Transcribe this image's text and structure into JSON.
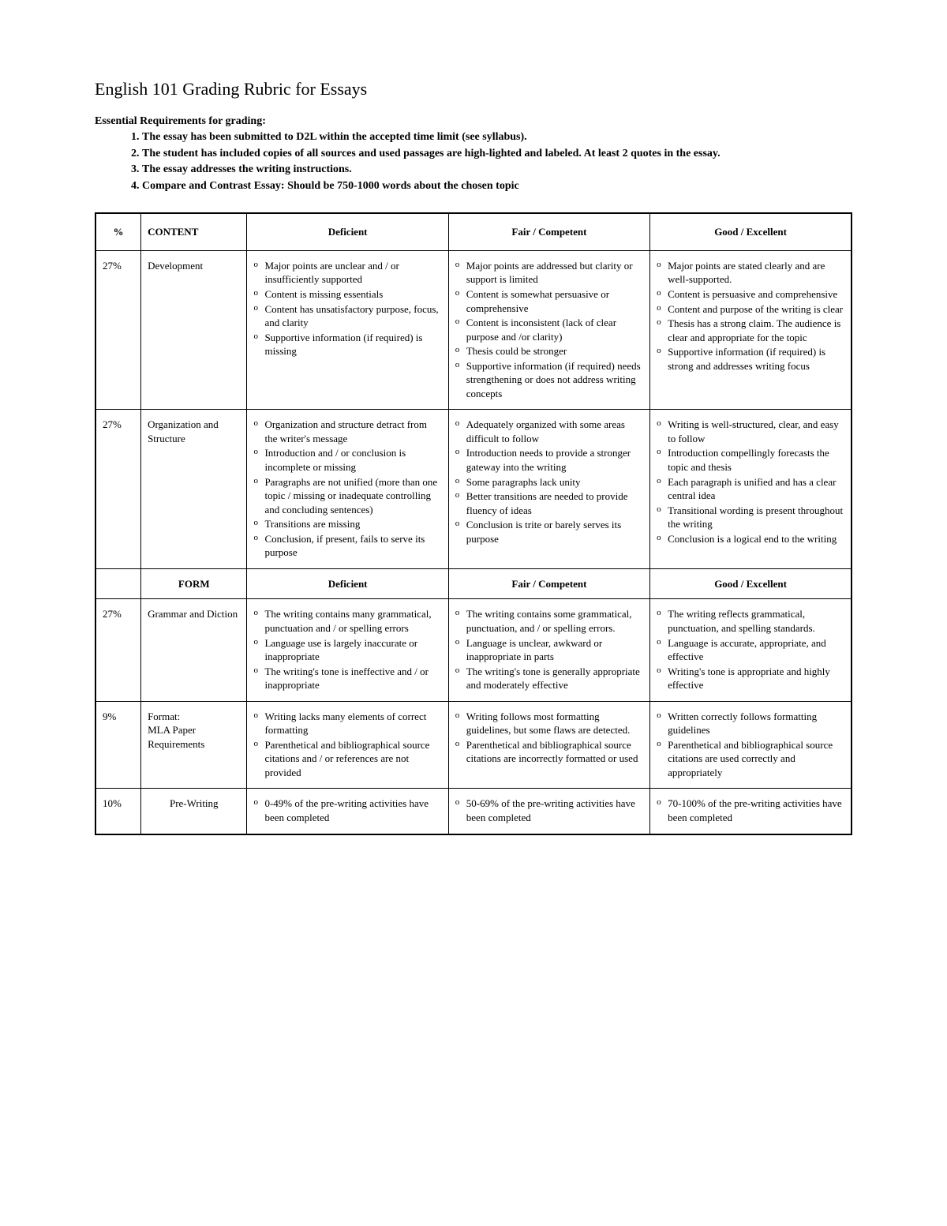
{
  "title": "English 101 Grading Rubric for Essays",
  "requirements_heading": "Essential Requirements for grading:",
  "requirements": [
    "The essay has been submitted to D2L within the accepted time limit (see syllabus).",
    "The student has included copies of all sources and used passages are high-lighted and labeled. At least 2 quotes in the essay.",
    "The essay addresses the writing instructions.",
    "Compare and Contrast Essay: Should be 750-1000 words about the chosen topic"
  ],
  "headers": {
    "percent": "%",
    "content": "CONTENT",
    "deficient": "Deficient",
    "fair": "Fair / Competent",
    "good": "Good / Excellent",
    "form": "FORM"
  },
  "rows": {
    "development": {
      "percent": "27%",
      "category": "Development",
      "deficient": [
        "Major points are unclear and / or insufficiently supported",
        "Content is missing essentials",
        "Content has unsatisfactory purpose, focus, and clarity",
        "Supportive information (if required) is missing"
      ],
      "fair": [
        "Major points are addressed but clarity or support is limited",
        "Content is somewhat persuasive or comprehensive",
        "Content is inconsistent (lack of clear purpose and /or clarity)",
        "Thesis could be stronger",
        "Supportive information (if required) needs strengthening or does not address writing concepts"
      ],
      "good": [
        "Major points are stated clearly and are well-supported.",
        "Content is persuasive and comprehensive",
        "Content and purpose of the writing is clear",
        "Thesis has a strong claim. The audience is clear and appropriate for the topic",
        "Supportive information (if required) is strong and addresses writing focus"
      ]
    },
    "organization": {
      "percent": "27%",
      "category": "Organization and Structure",
      "deficient": [
        "Organization and structure detract from the writer's message",
        "Introduction and / or conclusion is incomplete or missing",
        "Paragraphs are not unified (more than one topic / missing or inadequate controlling and concluding sentences)",
        "Transitions are missing",
        "Conclusion, if present, fails to serve its purpose"
      ],
      "fair": [
        "Adequately organized with some areas difficult to follow",
        "Introduction needs to provide a stronger gateway into the writing",
        "Some paragraphs lack unity",
        "Better transitions are needed to provide fluency of ideas",
        "Conclusion is trite or barely serves its purpose"
      ],
      "good": [
        "Writing is well-structured, clear, and easy to follow",
        "Introduction compellingly forecasts the topic and thesis",
        "Each paragraph is unified and has a clear central idea",
        "Transitional wording is present throughout the writing",
        "Conclusion is a logical end to the writing"
      ]
    },
    "grammar": {
      "percent": "27%",
      "category": "Grammar and Diction",
      "deficient": [
        "The writing contains many grammatical, punctuation and / or spelling errors",
        "Language use is largely inaccurate or inappropriate",
        "The writing's tone is ineffective and / or inappropriate"
      ],
      "fair": [
        "The writing contains some grammatical, punctuation, and / or spelling errors.",
        "Language is unclear, awkward or inappropriate in parts",
        "The writing's tone is generally appropriate and moderately effective"
      ],
      "good": [
        "The writing reflects grammatical, punctuation, and spelling standards.",
        "Language is accurate, appropriate, and effective",
        "Writing's tone is appropriate and highly effective"
      ]
    },
    "format": {
      "percent": "9%",
      "category": "Format:\nMLA Paper Requirements",
      "deficient": [
        "Writing lacks many elements of correct formatting",
        "Parenthetical and bibliographical source citations and / or references are not provided"
      ],
      "fair": [
        "Writing follows most formatting guidelines, but some flaws are detected.",
        "Parenthetical and bibliographical source citations are incorrectly formatted or used"
      ],
      "good": [
        "Written correctly follows formatting guidelines",
        "Parenthetical and bibliographical source citations are used correctly and appropriately"
      ]
    },
    "prewriting": {
      "percent": "10%",
      "category": "Pre-Writing",
      "deficient": "0-49% of the pre-writing activities have been completed",
      "fair": "50-69% of the pre-writing activities have been completed",
      "good": "70-100% of the pre-writing activities have been completed"
    }
  }
}
